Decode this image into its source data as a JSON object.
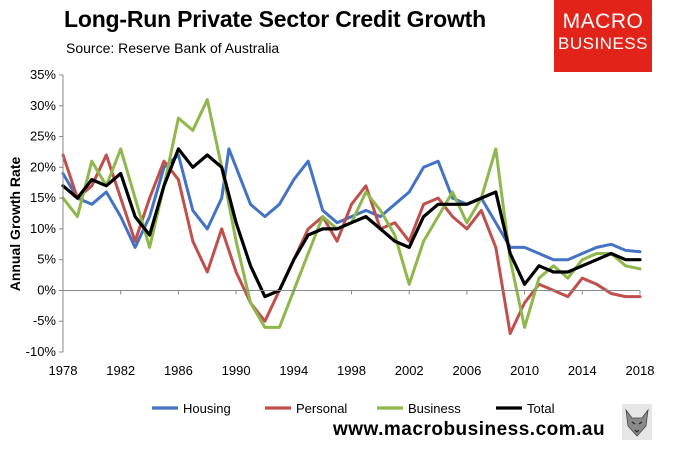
{
  "header": {
    "title": "Long-Run Private Sector Credit Growth",
    "source": "Source: Reserve Bank of Australia"
  },
  "logo": {
    "line1": "MACRO",
    "line2": "BUSINESS",
    "color": "#e2231a"
  },
  "footer": {
    "url": "www.macrobusiness.com.au"
  },
  "chart_data": {
    "type": "line",
    "title": "Long-Run Private Sector Credit Growth",
    "xlabel": "",
    "ylabel": "Annual Growth Rate",
    "xlim": [
      1978,
      2018
    ],
    "ylim": [
      -10,
      35
    ],
    "xticks": [
      "1978",
      "1982",
      "1986",
      "1990",
      "1994",
      "1998",
      "2002",
      "2006",
      "2010",
      "2014",
      "2018"
    ],
    "yticks": [
      "35%",
      "30%",
      "25%",
      "20%",
      "15%",
      "10%",
      "5%",
      "0%",
      "-5%",
      "-10%"
    ],
    "legend_position": "bottom",
    "series": [
      {
        "name": "Housing",
        "color": "#4472c4",
        "x": [
          1978,
          1979,
          1980,
          1981,
          1982,
          1983,
          1984,
          1985,
          1986,
          1987,
          1988,
          1989,
          1989.5,
          1990,
          1991,
          1992,
          1993,
          1994,
          1995,
          1996,
          1997,
          1998,
          1999,
          2000,
          2001,
          2002,
          2003,
          2004,
          2005,
          2006,
          2007,
          2008,
          2009,
          2010,
          2011,
          2012,
          2013,
          2014,
          2015,
          2016,
          2017,
          2018
        ],
        "y": [
          19,
          15,
          14,
          16,
          12,
          7,
          12,
          20,
          22,
          13,
          10,
          15,
          23,
          20,
          14,
          12,
          14,
          18,
          21,
          13,
          11,
          12,
          13,
          12,
          14,
          16,
          20,
          21,
          15,
          14,
          15,
          11,
          7,
          7,
          6,
          5,
          5,
          6,
          7,
          7.5,
          6.5,
          6.3
        ]
      },
      {
        "name": "Personal",
        "color": "#c0504d",
        "x": [
          1978,
          1979,
          1980,
          1981,
          1982,
          1983,
          1984,
          1985,
          1986,
          1987,
          1988,
          1989,
          1990,
          1991,
          1992,
          1993,
          1994,
          1995,
          1996,
          1997,
          1998,
          1999,
          2000,
          2001,
          2002,
          2003,
          2004,
          2005,
          2006,
          2007,
          2008,
          2009,
          2010,
          2011,
          2012,
          2013,
          2014,
          2015,
          2016,
          2017,
          2018
        ],
        "y": [
          22,
          15,
          17,
          22,
          15,
          8,
          15,
          21,
          18,
          8,
          3,
          10,
          3,
          -2,
          -5,
          0,
          5,
          10,
          12,
          8,
          14,
          17,
          10,
          11,
          8,
          14,
          15,
          12,
          10,
          13,
          7,
          -7,
          -2,
          1,
          0,
          -1,
          2,
          1,
          -0.5,
          -1,
          -1
        ]
      },
      {
        "name": "Business",
        "color": "#8eb84b",
        "x": [
          1978,
          1979,
          1980,
          1981,
          1982,
          1983,
          1984,
          1985,
          1986,
          1987,
          1988,
          1989,
          1990,
          1991,
          1992,
          1993,
          1994,
          1995,
          1996,
          1997,
          1998,
          1999,
          2000,
          2001,
          2002,
          2003,
          2004,
          2005,
          2006,
          2007,
          2008,
          2009,
          2010,
          2011,
          2012,
          2013,
          2014,
          2015,
          2016,
          2017,
          2018
        ],
        "y": [
          15,
          12,
          21,
          17,
          23,
          15,
          7,
          17,
          28,
          26,
          31,
          20,
          8,
          -2,
          -6,
          -6,
          0,
          6,
          12,
          10,
          11,
          16,
          13,
          9,
          1,
          8,
          12,
          16,
          11,
          15,
          23,
          5,
          -6,
          2,
          4,
          2,
          5,
          6,
          6,
          4,
          3.5
        ]
      },
      {
        "name": "Total",
        "color": "#000000",
        "x": [
          1978,
          1979,
          1980,
          1981,
          1982,
          1983,
          1984,
          1985,
          1986,
          1987,
          1988,
          1989,
          1990,
          1991,
          1992,
          1993,
          1994,
          1995,
          1996,
          1997,
          1998,
          1999,
          2000,
          2001,
          2002,
          2003,
          2004,
          2005,
          2006,
          2007,
          2008,
          2009,
          2010,
          2011,
          2012,
          2013,
          2014,
          2015,
          2016,
          2017,
          2018
        ],
        "y": [
          17,
          15,
          18,
          17,
          19,
          12,
          9,
          17,
          23,
          20,
          22,
          20,
          11,
          4,
          -1,
          0,
          5,
          9,
          10,
          10,
          11,
          12,
          10,
          8,
          7,
          12,
          14,
          14,
          14,
          15,
          16,
          6,
          1,
          4,
          3,
          3,
          4,
          5,
          6,
          5,
          5
        ]
      }
    ]
  }
}
